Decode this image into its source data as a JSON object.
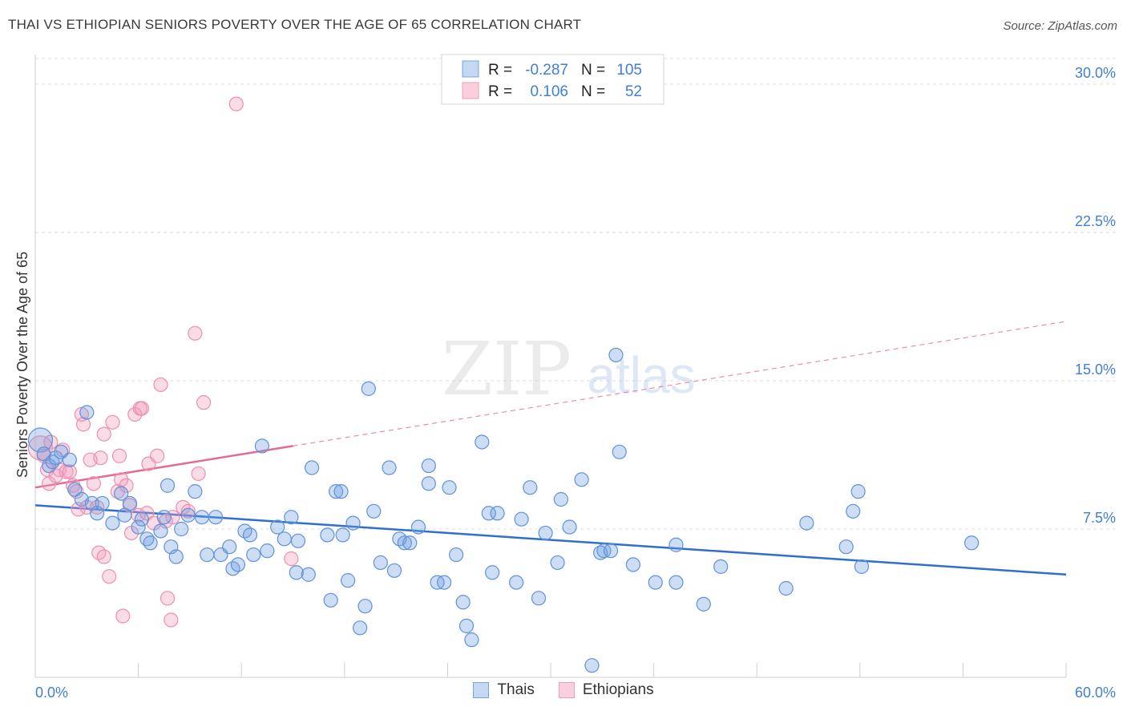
{
  "title": "THAI VS ETHIOPIAN SENIORS POVERTY OVER THE AGE OF 65 CORRELATION CHART",
  "source": "Source: ZipAtlas.com",
  "watermark": {
    "zip": "ZIP",
    "atlas": "atlas"
  },
  "legend_stats": {
    "r_label": "R =",
    "n_label": "N =",
    "rows": [
      {
        "r": "-0.287",
        "n": "105"
      },
      {
        "r": "0.106",
        "n": "52"
      }
    ]
  },
  "chart_data": {
    "type": "scatter",
    "title": "THAI VS ETHIOPIAN SENIORS POVERTY OVER THE AGE OF 65 CORRELATION CHART",
    "xlabel": "",
    "ylabel": "Seniors Poverty Over the Age of 65",
    "xlim": [
      0,
      60
    ],
    "ylim": [
      0,
      31.5
    ],
    "x_tick_labels": [
      "0.0%",
      "60.0%"
    ],
    "y_ticks": [
      7.5,
      15.0,
      22.5,
      30.0
    ],
    "y_tick_labels": [
      "7.5%",
      "15.0%",
      "22.5%",
      "30.0%"
    ],
    "grid": true,
    "legend_position": "bottom",
    "colors": {
      "thais": "#6f9fe0",
      "ethiopians": "#f29cba",
      "thais_line": "#2f6fcf",
      "ethiopians_line": "#e36b95",
      "tick_text": "#3f7fd6"
    },
    "series": [
      {
        "name": "Thais",
        "trend": {
          "x0": 0,
          "y0": 8.7,
          "x1": 60,
          "y1": 5.2
        },
        "points": [
          [
            0.3,
            12.0
          ],
          [
            0.5,
            11.3
          ],
          [
            0.8,
            10.7
          ],
          [
            1.0,
            10.9
          ],
          [
            1.2,
            11.1
          ],
          [
            1.5,
            11.4
          ],
          [
            2.0,
            11.0
          ],
          [
            3.0,
            13.4
          ],
          [
            2.3,
            9.5
          ],
          [
            2.7,
            9.0
          ],
          [
            3.3,
            8.8
          ],
          [
            3.6,
            8.3
          ],
          [
            3.9,
            8.8
          ],
          [
            4.5,
            7.8
          ],
          [
            5.0,
            9.3
          ],
          [
            5.2,
            8.2
          ],
          [
            5.5,
            8.8
          ],
          [
            6.0,
            7.6
          ],
          [
            6.2,
            8.0
          ],
          [
            6.5,
            7.0
          ],
          [
            6.7,
            6.8
          ],
          [
            7.5,
            8.1
          ],
          [
            7.3,
            7.4
          ],
          [
            7.7,
            9.7
          ],
          [
            7.9,
            6.6
          ],
          [
            8.2,
            6.1
          ],
          [
            8.5,
            7.5
          ],
          [
            8.9,
            8.2
          ],
          [
            9.3,
            9.4
          ],
          [
            9.7,
            8.1
          ],
          [
            10.0,
            6.2
          ],
          [
            10.5,
            8.1
          ],
          [
            10.8,
            6.2
          ],
          [
            11.3,
            6.6
          ],
          [
            11.5,
            5.5
          ],
          [
            11.8,
            5.7
          ],
          [
            12.2,
            7.4
          ],
          [
            12.5,
            7.2
          ],
          [
            12.7,
            6.2
          ],
          [
            13.2,
            11.7
          ],
          [
            13.5,
            6.4
          ],
          [
            14.1,
            7.6
          ],
          [
            14.5,
            7.0
          ],
          [
            14.9,
            8.1
          ],
          [
            15.2,
            5.3
          ],
          [
            15.9,
            5.2
          ],
          [
            15.3,
            6.9
          ],
          [
            17.0,
            7.2
          ],
          [
            16.1,
            10.6
          ],
          [
            17.2,
            3.9
          ],
          [
            17.5,
            9.4
          ],
          [
            17.8,
            9.4
          ],
          [
            18.2,
            4.9
          ],
          [
            17.9,
            7.2
          ],
          [
            18.5,
            7.8
          ],
          [
            18.9,
            2.5
          ],
          [
            19.2,
            3.6
          ],
          [
            19.4,
            14.6
          ],
          [
            19.7,
            8.4
          ],
          [
            20.1,
            5.8
          ],
          [
            20.6,
            10.6
          ],
          [
            20.9,
            5.4
          ],
          [
            21.2,
            7.0
          ],
          [
            21.5,
            6.8
          ],
          [
            21.8,
            6.8
          ],
          [
            22.3,
            7.6
          ],
          [
            22.9,
            9.8
          ],
          [
            22.9,
            10.7
          ],
          [
            23.4,
            4.8
          ],
          [
            23.8,
            4.8
          ],
          [
            24.1,
            9.6
          ],
          [
            24.5,
            6.2
          ],
          [
            24.9,
            3.8
          ],
          [
            25.1,
            2.6
          ],
          [
            25.4,
            1.9
          ],
          [
            26.0,
            11.9
          ],
          [
            26.4,
            8.3
          ],
          [
            26.6,
            5.3
          ],
          [
            26.9,
            8.3
          ],
          [
            28.0,
            4.8
          ],
          [
            28.3,
            8.0
          ],
          [
            28.8,
            9.6
          ],
          [
            29.3,
            4.0
          ],
          [
            30.4,
            5.8
          ],
          [
            29.7,
            7.3
          ],
          [
            30.6,
            9.0
          ],
          [
            31.1,
            7.6
          ],
          [
            31.8,
            10.0
          ],
          [
            32.4,
            0.6
          ],
          [
            32.9,
            6.3
          ],
          [
            33.1,
            6.4
          ],
          [
            33.5,
            6.4
          ],
          [
            33.8,
            16.3
          ],
          [
            34.0,
            11.4
          ],
          [
            34.8,
            5.7
          ],
          [
            36.1,
            4.8
          ],
          [
            37.3,
            6.7
          ],
          [
            37.3,
            4.8
          ],
          [
            38.9,
            3.7
          ],
          [
            39.9,
            5.6
          ],
          [
            43.7,
            4.5
          ],
          [
            44.9,
            7.8
          ],
          [
            47.2,
            6.6
          ],
          [
            47.6,
            8.4
          ],
          [
            47.9,
            9.4
          ],
          [
            48.1,
            5.6
          ],
          [
            54.5,
            6.8
          ]
        ]
      },
      {
        "name": "Ethiopians",
        "trend": {
          "x0": 0,
          "y0": 9.6,
          "x1": 15,
          "y1": 11.7
        },
        "points": [
          [
            0.3,
            11.6
          ],
          [
            0.5,
            11.2
          ],
          [
            0.7,
            10.5
          ],
          [
            0.8,
            9.8
          ],
          [
            0.9,
            11.9
          ],
          [
            1.2,
            10.2
          ],
          [
            1.4,
            10.5
          ],
          [
            1.6,
            11.5
          ],
          [
            1.8,
            10.4
          ],
          [
            2.0,
            10.4
          ],
          [
            2.2,
            9.7
          ],
          [
            2.4,
            9.4
          ],
          [
            2.5,
            8.5
          ],
          [
            2.7,
            13.3
          ],
          [
            2.8,
            12.8
          ],
          [
            3.0,
            8.6
          ],
          [
            3.2,
            11.0
          ],
          [
            3.4,
            9.8
          ],
          [
            3.6,
            8.6
          ],
          [
            3.7,
            6.3
          ],
          [
            3.8,
            11.1
          ],
          [
            4.0,
            6.1
          ],
          [
            4.0,
            12.3
          ],
          [
            4.3,
            5.1
          ],
          [
            4.5,
            12.9
          ],
          [
            4.8,
            9.4
          ],
          [
            4.9,
            11.2
          ],
          [
            5.0,
            10.0
          ],
          [
            5.1,
            3.1
          ],
          [
            5.3,
            9.7
          ],
          [
            5.5,
            8.7
          ],
          [
            5.6,
            7.3
          ],
          [
            5.8,
            13.3
          ],
          [
            6.0,
            8.2
          ],
          [
            6.1,
            13.6
          ],
          [
            6.2,
            13.6
          ],
          [
            6.5,
            8.3
          ],
          [
            6.6,
            10.8
          ],
          [
            6.9,
            7.8
          ],
          [
            7.1,
            11.2
          ],
          [
            7.3,
            14.8
          ],
          [
            7.6,
            7.9
          ],
          [
            7.7,
            4.0
          ],
          [
            7.9,
            2.9
          ],
          [
            8.6,
            8.6
          ],
          [
            8.9,
            8.4
          ],
          [
            9.3,
            17.4
          ],
          [
            9.5,
            10.3
          ],
          [
            9.8,
            13.9
          ],
          [
            11.7,
            29.0
          ],
          [
            14.9,
            6.0
          ],
          [
            8.0,
            8.1
          ]
        ]
      }
    ]
  }
}
